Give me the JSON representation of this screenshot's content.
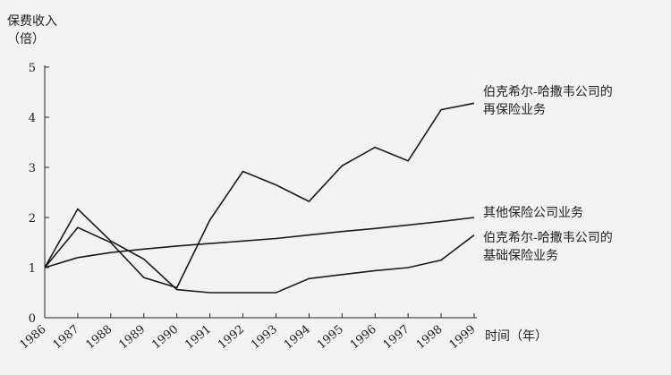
{
  "chart_data": {
    "type": "line",
    "ylabel": [
      "保费收入",
      "（倍）"
    ],
    "xlabel": "时间（年）",
    "ylim": [
      0,
      5
    ],
    "yticks": [
      0,
      1,
      2,
      3,
      4,
      5
    ],
    "x": [
      "1986",
      "1987",
      "1988",
      "1989",
      "1990",
      "1991",
      "1992",
      "1993",
      "1994",
      "1995",
      "1996",
      "1997",
      "1998",
      "1999"
    ],
    "grid": false,
    "series": [
      {
        "name": "伯克希尔-哈撒韦公司的再保险业务",
        "label_lines": [
          "伯克希尔-哈撒韦公司的",
          "再保险业务"
        ],
        "values": [
          1.0,
          1.8,
          1.5,
          0.8,
          0.6,
          1.95,
          2.92,
          2.65,
          2.32,
          3.03,
          3.4,
          3.13,
          4.15,
          4.28
        ]
      },
      {
        "name": "其他保险公司业务",
        "label_lines": [
          "其他保险公司业务"
        ],
        "values": [
          1.0,
          1.2,
          1.3,
          1.37,
          1.43,
          1.48,
          1.53,
          1.58,
          1.65,
          1.72,
          1.78,
          1.85,
          1.92,
          2.0
        ]
      },
      {
        "name": "伯克希尔-哈撒韦公司的基础保险业务",
        "label_lines": [
          "伯克希尔-哈撒韦公司的",
          "基础保险业务"
        ],
        "values": [
          1.0,
          2.17,
          1.53,
          1.17,
          0.56,
          0.5,
          0.5,
          0.5,
          0.78,
          0.86,
          0.94,
          1.0,
          1.15,
          1.65
        ]
      }
    ]
  }
}
